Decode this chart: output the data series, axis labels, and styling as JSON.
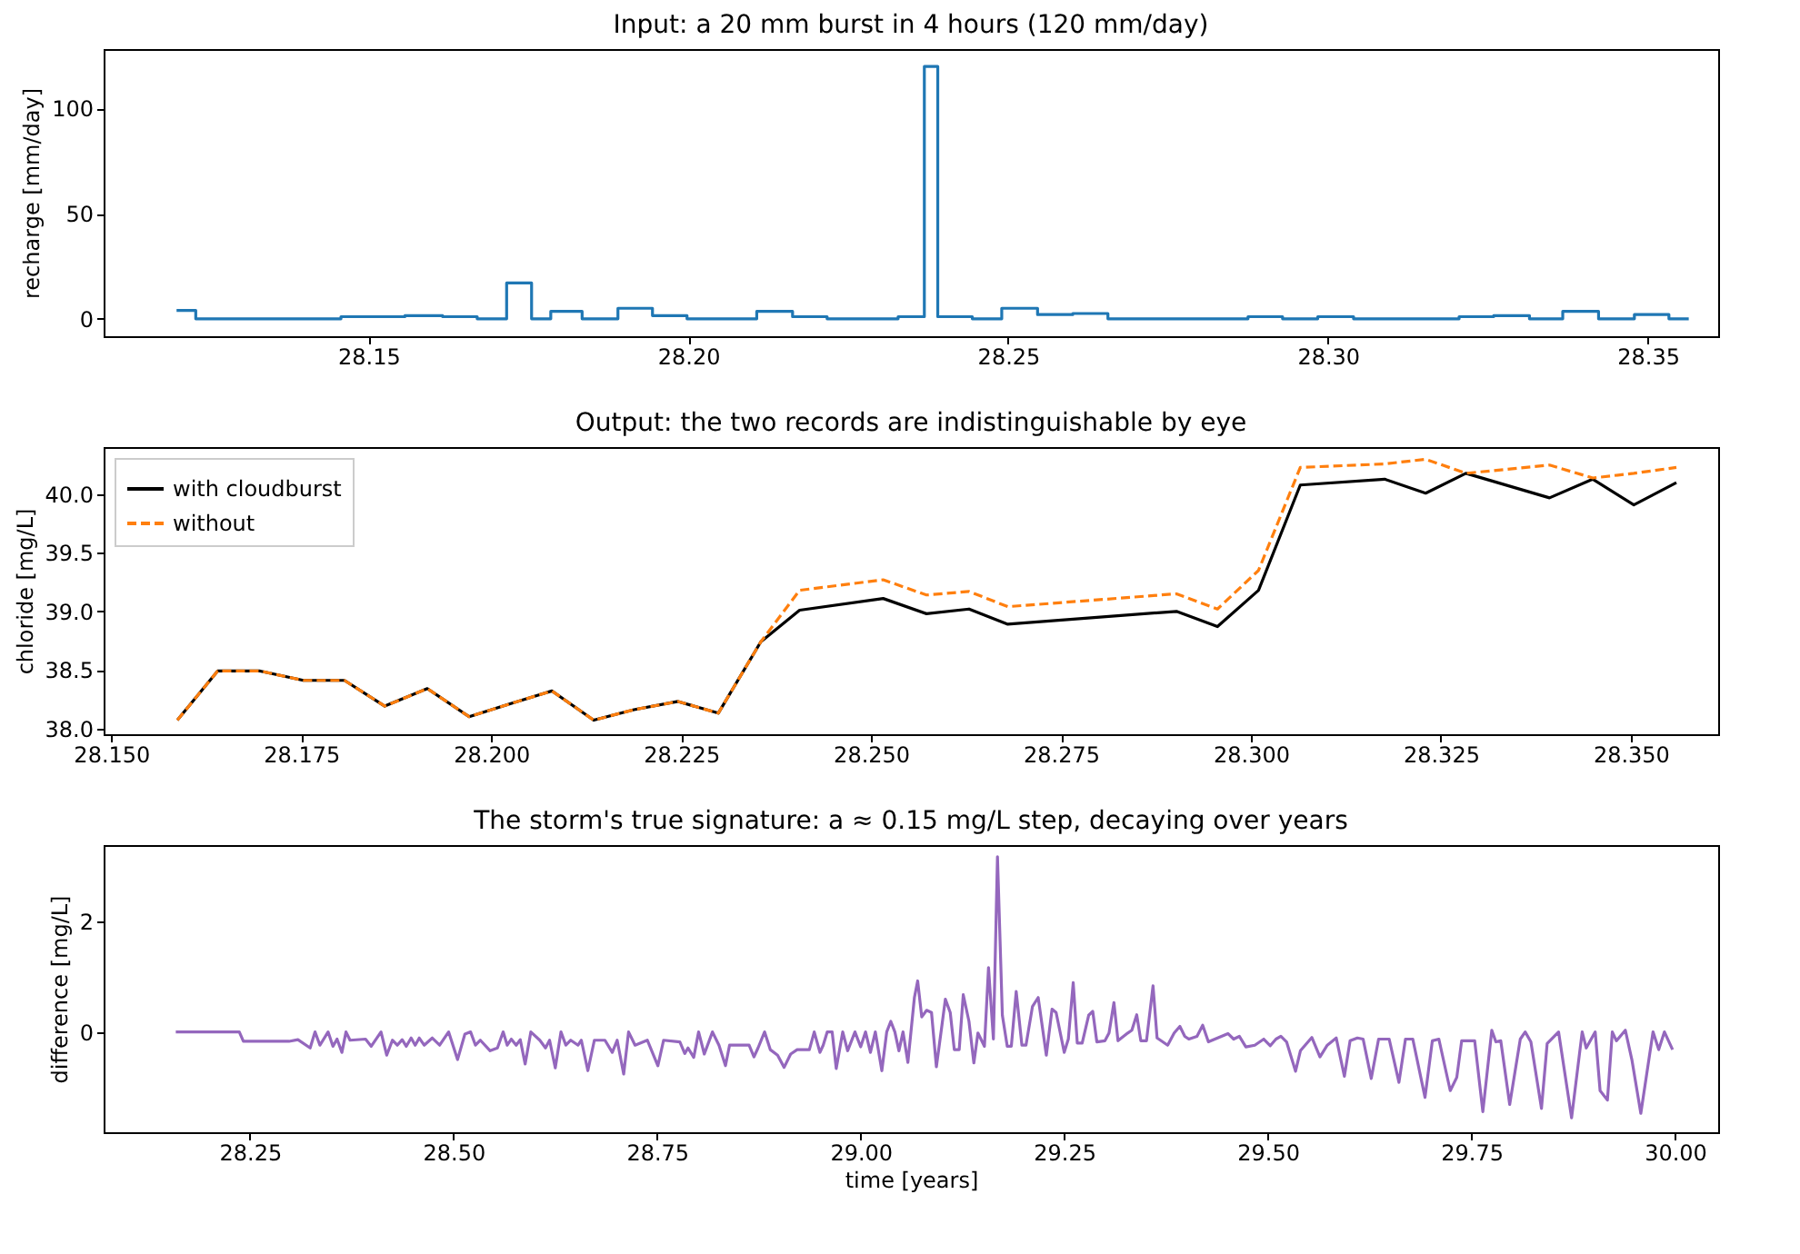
{
  "chart_data": [
    {
      "type": "step",
      "title": "Input: a 20 mm burst in 4 hours (120 mm/day)",
      "ylabel": "recharge [mm/day]",
      "color": "#1f77b4",
      "x": [
        28.12,
        28.123,
        28.1457,
        28.1557,
        28.1616,
        28.167,
        28.1716,
        28.1755,
        28.1785,
        28.1834,
        28.189,
        28.1944,
        28.1998,
        28.2107,
        28.2163,
        28.2217,
        28.2328,
        28.2369,
        28.239,
        28.2444,
        28.249,
        28.2546,
        28.2601,
        28.2656,
        28.2875,
        28.2929,
        28.2984,
        28.304,
        28.3205,
        28.3259,
        28.3315,
        28.3367,
        28.3423,
        28.3479,
        28.3533,
        28.3564
      ],
      "values": [
        4,
        0,
        1,
        1.5,
        1,
        0,
        17,
        0,
        3.5,
        0,
        5,
        1.5,
        0,
        3.5,
        1,
        0,
        1,
        120,
        1,
        0,
        5,
        2,
        2.5,
        0,
        1,
        0,
        1,
        0,
        1,
        1.5,
        0,
        3.5,
        0,
        2,
        0,
        0
      ],
      "xlim": [
        28.1086,
        28.361
      ],
      "ylim": [
        -8.3,
        128.3
      ],
      "xticks": [
        28.15,
        {
          "value": 28.2,
          "label": "28.20"
        },
        28.25,
        {
          "value": 28.3,
          "label": "28.30"
        },
        28.35
      ],
      "yticks": [
        0,
        50,
        100
      ]
    },
    {
      "type": "line",
      "title": "Output: the two records are indistinguishable by eye",
      "ylabel": "chloride [mg/L]",
      "legend": "top left",
      "x": [
        28.1587,
        28.164,
        28.1696,
        28.1753,
        28.1807,
        28.186,
        28.1916,
        28.1971,
        28.2025,
        28.208,
        28.2135,
        28.2188,
        28.2246,
        28.2299,
        28.2355,
        28.2406,
        28.2516,
        28.2573,
        28.2629,
        28.268,
        28.2902,
        28.2956,
        28.301,
        28.3065,
        28.3176,
        28.323,
        28.3283,
        28.3393,
        28.345,
        28.3504,
        28.356
      ],
      "series": [
        {
          "name": "with cloudburst",
          "color": "#000000",
          "line_style": "solid",
          "values": [
            38.07,
            38.49,
            38.49,
            38.41,
            38.41,
            38.19,
            38.34,
            38.1,
            38.21,
            38.32,
            38.07,
            38.16,
            38.23,
            38.13,
            38.74,
            39.01,
            39.11,
            38.98,
            39.02,
            38.89,
            39.0,
            38.87,
            39.18,
            40.08,
            40.13,
            40.01,
            40.18,
            39.97,
            40.13,
            39.91,
            40.1
          ]
        },
        {
          "name": "without",
          "color": "#ff7f0e",
          "line_style": "dashed",
          "values": [
            38.07,
            38.49,
            38.49,
            38.41,
            38.41,
            38.19,
            38.34,
            38.1,
            38.21,
            38.32,
            38.07,
            38.16,
            38.23,
            38.13,
            38.74,
            39.18,
            39.27,
            39.14,
            39.17,
            39.04,
            39.15,
            39.02,
            39.35,
            40.23,
            40.26,
            40.3,
            40.18,
            40.25,
            40.14,
            40.18,
            40.23
          ]
        }
      ],
      "xlim": [
        28.149,
        28.3615
      ],
      "ylim": [
        37.95,
        40.404
      ],
      "xticks": [
        {
          "value": 28.15,
          "label": "28.150"
        },
        {
          "value": 28.175,
          "label": "28.175"
        },
        {
          "value": 28.2,
          "label": "28.200"
        },
        {
          "value": 28.225,
          "label": "28.225"
        },
        {
          "value": 28.25,
          "label": "28.250"
        },
        {
          "value": 28.275,
          "label": "28.275"
        },
        {
          "value": 28.3,
          "label": "28.300"
        },
        {
          "value": 28.325,
          "label": "28.325"
        },
        {
          "value": 28.35,
          "label": "28.350"
        }
      ],
      "yticks": [
        {
          "value": 38,
          "label": "38.0"
        },
        38.5,
        {
          "value": 39,
          "label": "39.0"
        },
        39.5,
        {
          "value": 40,
          "label": "40.0"
        }
      ]
    },
    {
      "type": "line",
      "title": "The storm's true signature: a ≈ 0.15 mg/L step, decaying over years",
      "xlabel": "time [years]",
      "ylabel": "difference [mg/L]",
      "color": "#9467bd",
      "x": [
        28.159,
        28.237,
        28.242,
        28.298,
        28.309,
        28.324,
        28.33,
        28.336,
        28.346,
        28.352,
        28.357,
        28.363,
        28.368,
        28.373,
        28.392,
        28.399,
        28.411,
        28.418,
        28.425,
        28.431,
        28.437,
        28.442,
        28.448,
        28.453,
        28.458,
        28.464,
        28.474,
        28.483,
        28.494,
        28.505,
        28.514,
        28.521,
        28.527,
        28.533,
        28.545,
        28.554,
        28.561,
        28.566,
        28.571,
        28.577,
        28.582,
        28.588,
        28.595,
        28.606,
        28.613,
        28.618,
        28.625,
        28.632,
        28.638,
        28.644,
        28.653,
        28.657,
        28.665,
        28.673,
        28.686,
        28.695,
        28.701,
        28.709,
        28.715,
        28.723,
        28.738,
        28.751,
        28.758,
        28.778,
        28.784,
        28.788,
        28.795,
        28.801,
        28.808,
        28.818,
        28.826,
        28.834,
        28.839,
        28.863,
        28.869,
        28.874,
        28.882,
        28.889,
        28.898,
        28.906,
        28.914,
        28.922,
        28.937,
        28.943,
        28.95,
        28.954,
        28.959,
        28.965,
        28.97,
        28.978,
        28.984,
        28.993,
        29.0,
        29.006,
        29.012,
        29.018,
        29.026,
        29.032,
        29.037,
        29.042,
        29.047,
        29.052,
        29.058,
        29.066,
        29.07,
        29.075,
        29.081,
        29.087,
        29.093,
        29.1,
        29.104,
        29.11,
        29.115,
        29.121,
        29.126,
        29.133,
        29.139,
        29.144,
        29.152,
        29.157,
        29.163,
        29.168,
        29.174,
        29.18,
        29.185,
        29.191,
        29.198,
        29.203,
        29.211,
        29.218,
        29.228,
        29.235,
        29.24,
        29.25,
        29.255,
        29.261,
        29.266,
        29.272,
        29.28,
        29.285,
        29.29,
        29.3,
        29.305,
        29.311,
        29.316,
        29.328,
        29.333,
        29.339,
        29.344,
        29.351,
        29.359,
        29.364,
        29.377,
        29.385,
        29.392,
        29.398,
        29.403,
        29.413,
        29.42,
        29.427,
        29.443,
        29.451,
        29.458,
        29.465,
        29.473,
        29.484,
        29.495,
        29.503,
        29.51,
        29.516,
        29.523,
        29.534,
        29.54,
        29.554,
        29.564,
        29.573,
        29.584,
        29.594,
        29.601,
        29.61,
        29.617,
        29.627,
        29.636,
        29.649,
        29.661,
        29.669,
        29.678,
        29.693,
        29.702,
        29.71,
        29.724,
        29.732,
        29.738,
        29.754,
        29.764,
        29.775,
        29.78,
        29.786,
        29.797,
        29.81,
        29.816,
        29.823,
        29.836,
        29.843,
        29.857,
        29.873,
        29.886,
        29.891,
        29.902,
        29.908,
        29.917,
        29.923,
        29.928,
        29.939,
        29.947,
        29.958,
        29.973,
        29.98,
        29.987,
        29.997
      ],
      "values": [
        0,
        0,
        -0.17,
        -0.17,
        -0.14,
        -0.29,
        0,
        -0.24,
        0,
        -0.26,
        -0.13,
        -0.37,
        0,
        -0.15,
        -0.13,
        -0.26,
        0,
        -0.42,
        -0.15,
        -0.24,
        -0.14,
        -0.26,
        -0.11,
        -0.24,
        -0.11,
        -0.24,
        -0.11,
        -0.24,
        0,
        -0.5,
        -0.04,
        0,
        -0.24,
        -0.15,
        -0.34,
        -0.29,
        0,
        -0.24,
        -0.13,
        -0.24,
        -0.14,
        -0.58,
        0,
        -0.15,
        -0.29,
        -0.15,
        -0.65,
        0,
        -0.24,
        -0.15,
        -0.24,
        -0.15,
        -0.7,
        -0.15,
        -0.15,
        -0.37,
        -0.15,
        -0.76,
        0,
        -0.24,
        -0.15,
        -0.61,
        -0.15,
        -0.18,
        -0.39,
        -0.29,
        -0.46,
        0,
        -0.4,
        0,
        -0.24,
        -0.61,
        -0.24,
        -0.24,
        -0.45,
        -0.29,
        0,
        -0.32,
        -0.42,
        -0.64,
        -0.4,
        -0.32,
        -0.32,
        0,
        -0.37,
        -0.24,
        0,
        0,
        -0.66,
        0,
        -0.34,
        0,
        -0.27,
        0,
        -0.37,
        0,
        -0.7,
        0,
        0.19,
        0,
        -0.34,
        0,
        -0.55,
        0.62,
        0.92,
        0.27,
        0.39,
        0.35,
        -0.63,
        0.14,
        0.59,
        0.35,
        -0.32,
        -0.32,
        0.67,
        0.19,
        -0.56,
        -0.02,
        -0.26,
        1.16,
        -0.13,
        3.16,
        0.3,
        -0.26,
        -0.26,
        0.73,
        -0.24,
        -0.24,
        0.46,
        0.62,
        -0.42,
        0.41,
        0.35,
        -0.37,
        -0.13,
        0.89,
        -0.2,
        -0.2,
        0.3,
        0.37,
        -0.18,
        -0.16,
        -0.02,
        0.53,
        -0.16,
        -0.02,
        0.03,
        0.31,
        -0.16,
        -0.16,
        0.83,
        -0.11,
        -0.24,
        -0.02,
        0.1,
        -0.08,
        -0.13,
        -0.08,
        0.12,
        -0.18,
        -0.08,
        -0.03,
        -0.13,
        -0.08,
        -0.27,
        -0.24,
        -0.13,
        -0.25,
        -0.13,
        -0.08,
        -0.18,
        -0.71,
        -0.34,
        -0.1,
        -0.45,
        -0.24,
        -0.11,
        -0.8,
        -0.16,
        -0.11,
        -0.13,
        -0.84,
        -0.13,
        -0.13,
        -0.91,
        -0.13,
        -0.13,
        -1.18,
        -0.16,
        -0.13,
        -1.06,
        -0.82,
        -0.16,
        -0.16,
        -1.44,
        0.03,
        -0.18,
        -0.16,
        -1.31,
        -0.13,
        0,
        -0.18,
        -1.38,
        -0.21,
        0,
        -1.55,
        0,
        -0.29,
        0,
        -1.06,
        -1.23,
        0,
        -0.16,
        0.03,
        -0.5,
        -1.47,
        0,
        -0.32,
        0,
        -0.32
      ],
      "xlim": [
        28.0704,
        30.053
      ],
      "ylim": [
        -1.81,
        3.37
      ],
      "xticks": [
        28.25,
        {
          "value": 28.5,
          "label": "28.50"
        },
        28.75,
        {
          "value": 29,
          "label": "29.00"
        },
        29.25,
        {
          "value": 29.5,
          "label": "29.50"
        },
        29.75,
        {
          "value": 30,
          "label": "30.00"
        }
      ],
      "yticks": [
        0,
        2
      ]
    }
  ]
}
